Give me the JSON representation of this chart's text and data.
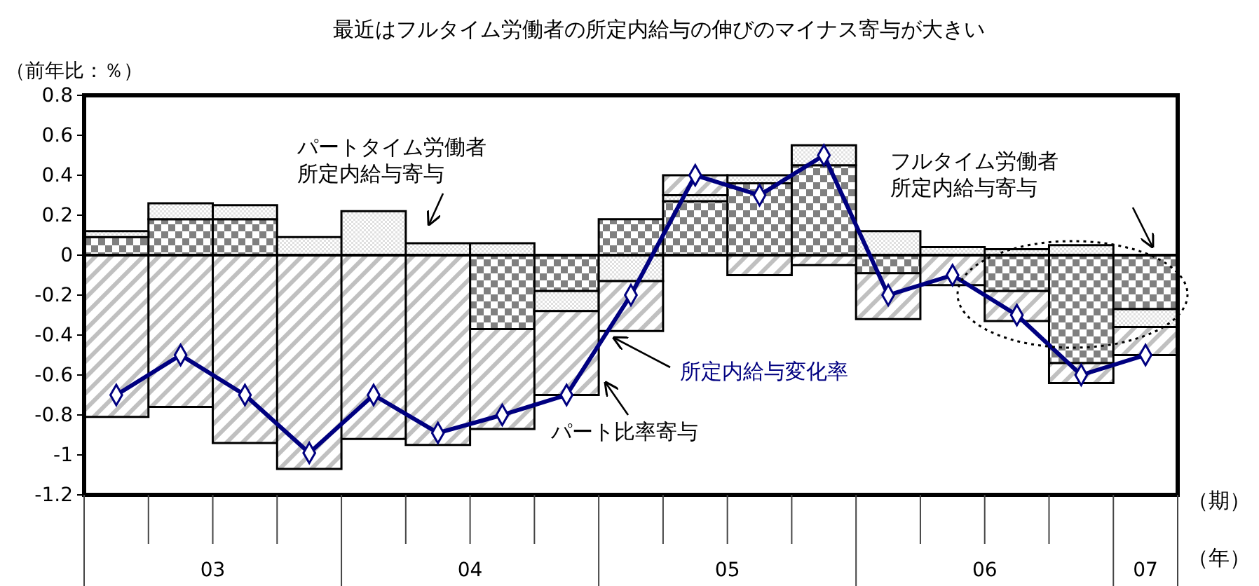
{
  "chart_data": {
    "type": "bar",
    "stacked": true,
    "title": "最近はフルタイム労働者の所定内給与の伸びのマイナス寄与が大きい",
    "ylabel": "（前年比：％）",
    "xlabel": "（期）",
    "categories": [
      null,
      null,
      null,
      null,
      null,
      null,
      null,
      null,
      null,
      null,
      null,
      null,
      null,
      null,
      null,
      null,
      null
    ],
    "series": [
      {
        "name": "フルタイム労働者所定内給与寄与",
        "color": "#808080",
        "values": [
          0.09,
          0.18,
          0.18,
          0,
          0,
          0,
          -0.37,
          -0.18,
          0.18,
          0.27,
          0.36,
          0.45,
          -0.09,
          0,
          -0.18,
          -0.54,
          -0.27
        ]
      },
      {
        "name": "パートタイム労働者所定内給与寄与",
        "color": "#e0e0e0",
        "values": [
          0.03,
          0.08,
          0.07,
          0.09,
          0.22,
          0.06,
          0.06,
          -0.1,
          -0.13,
          0.03,
          0.04,
          0.1,
          0.12,
          0.04,
          0.03,
          0.05,
          -0.09
        ]
      },
      {
        "name": "パート比率寄与",
        "color": "#c0c0c0",
        "values": [
          -0.81,
          -0.76,
          -0.94,
          -1.07,
          -0.92,
          -0.95,
          -0.5,
          -0.42,
          -0.25,
          0.1,
          -0.1,
          -0.05,
          -0.23,
          -0.15,
          -0.15,
          -0.1,
          -0.14
        ]
      },
      {
        "name": "所定内給与変化率",
        "type": "line",
        "color": "#000080",
        "values": [
          -0.7,
          -0.5,
          -0.7,
          -0.99,
          -0.7,
          -0.89,
          -0.8,
          -0.7,
          -0.2,
          0.4,
          0.3,
          0.5,
          -0.2,
          -0.1,
          -0.3,
          -0.6,
          -0.5
        ]
      }
    ],
    "ylim": [
      -1.2,
      0.8
    ],
    "yticks": [
      0.8,
      0.6,
      0.4,
      0.2,
      0,
      -0.2,
      -0.4,
      -0.6,
      -0.8,
      -1,
      -1.2
    ],
    "ref_lines": [
      {
        "axis": "y",
        "value": 0
      }
    ],
    "annotations": [
      "03",
      "04",
      "05",
      "06",
      "07",
      "（年）"
    ],
    "grid": false,
    "legend": false,
    "marker": "diamond",
    "line_style": "solid"
  }
}
